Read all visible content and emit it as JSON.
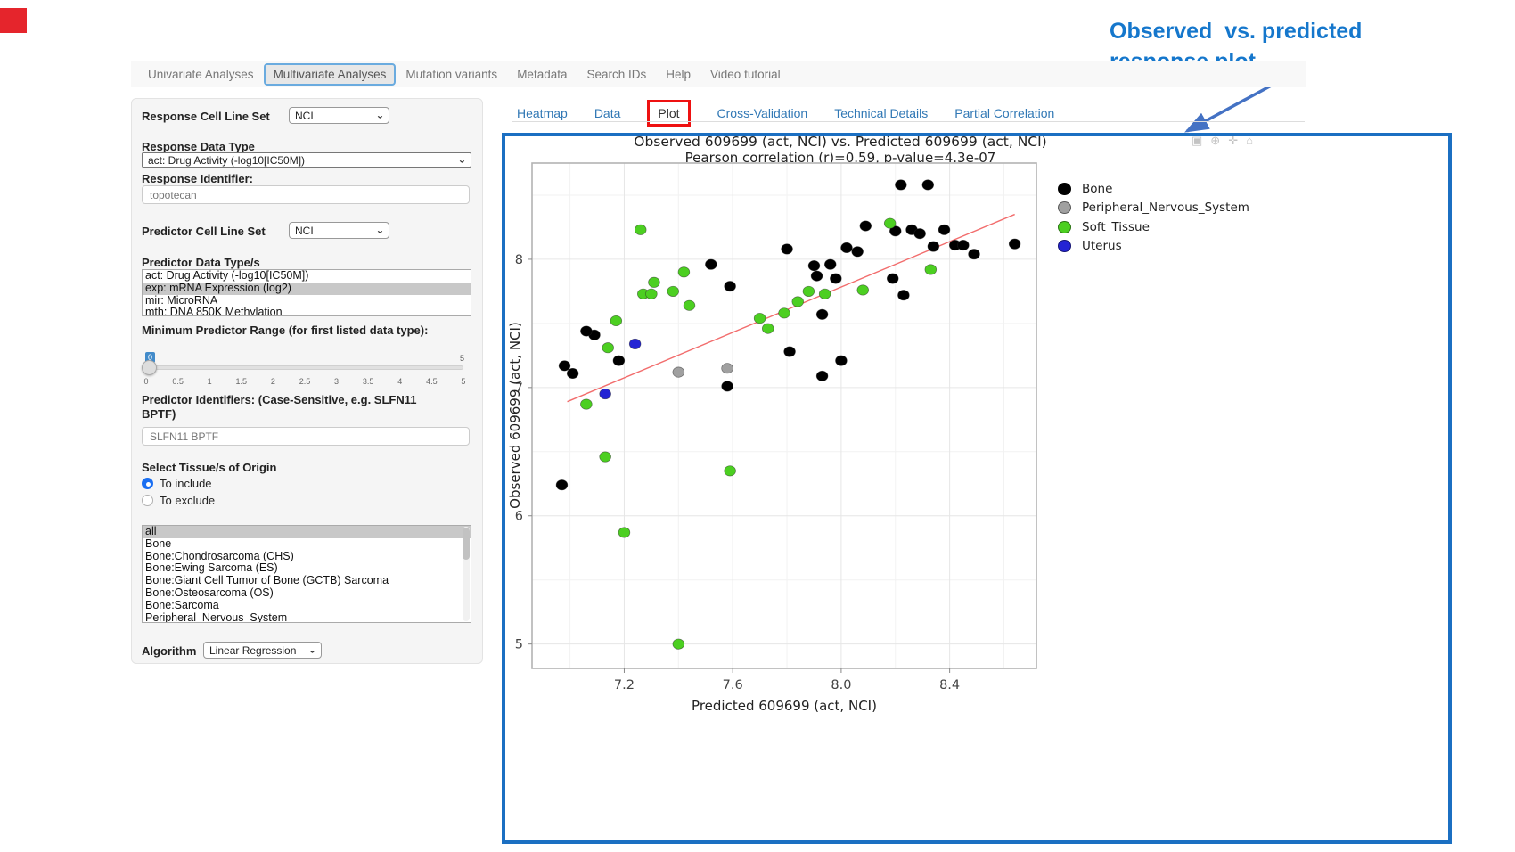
{
  "annotation": {
    "line1": "Observed  vs. predicted",
    "line2": "response plot",
    "text_color": "#1577cc",
    "arrow_color": "#4472c4"
  },
  "navbar": {
    "items": [
      {
        "label": "Univariate Analyses",
        "active": false
      },
      {
        "label": "Multivariate Analyses",
        "active": true
      },
      {
        "label": "Mutation variants",
        "active": false
      },
      {
        "label": "Metadata",
        "active": false
      },
      {
        "label": "Search IDs",
        "active": false
      },
      {
        "label": "Help",
        "active": false
      },
      {
        "label": "Video tutorial",
        "active": false
      }
    ]
  },
  "sidebar": {
    "response_cell_line_set": {
      "label": "Response Cell Line Set",
      "value": "NCI"
    },
    "response_data_type": {
      "label": "Response Data Type",
      "value": "act: Drug Activity (-log10[IC50M])"
    },
    "response_identifier": {
      "label": "Response Identifier:",
      "value": "topotecan"
    },
    "predictor_cell_line_set": {
      "label": "Predictor Cell Line Set",
      "value": "NCI"
    },
    "predictor_data_types": {
      "label": "Predictor Data Type/s",
      "options": [
        "act: Drug Activity (-log10[IC50M])",
        "exp: mRNA Expression (log2)",
        "mir: MicroRNA",
        "mth: DNA 850K Methylation"
      ],
      "selected": "exp: mRNA Expression (log2)"
    },
    "min_predictor_range": {
      "label": "Minimum Predictor Range (for first listed data type):",
      "value": "0",
      "max_label": "5",
      "ticks": [
        "0",
        "0.5",
        "1",
        "1.5",
        "2",
        "2.5",
        "3",
        "3.5",
        "4",
        "4.5",
        "5"
      ]
    },
    "predictor_identifiers": {
      "label": "Predictor Identifiers: (Case-Sensitive, e.g. SLFN11 BPTF)",
      "value": "SLFN11 BPTF"
    },
    "tissue_origin": {
      "label": "Select Tissue/s of Origin",
      "radios": [
        {
          "label": "To include",
          "checked": true
        },
        {
          "label": "To exclude",
          "checked": false
        }
      ],
      "options": [
        "all",
        "Bone",
        "Bone:Chondrosarcoma (CHS)",
        "Bone:Ewing Sarcoma (ES)",
        "Bone:Giant Cell Tumor of Bone (GCTB) Sarcoma",
        "Bone:Osteosarcoma (OS)",
        "Bone:Sarcoma",
        "Peripheral_Nervous_System"
      ],
      "selected": "all"
    },
    "algorithm": {
      "label": "Algorithm",
      "value": "Linear Regression"
    }
  },
  "main": {
    "tabs": [
      {
        "label": "Heatmap",
        "active": false,
        "highlighted": false
      },
      {
        "label": "Data",
        "active": false,
        "highlighted": false
      },
      {
        "label": "Plot",
        "active": true,
        "highlighted": true
      },
      {
        "label": "Cross-Validation",
        "active": false,
        "highlighted": false
      },
      {
        "label": "Technical Details",
        "active": false,
        "highlighted": false
      },
      {
        "label": "Partial Correlation",
        "active": false,
        "highlighted": false
      }
    ],
    "modebar_icons": [
      "camera-icon",
      "zoom-icon",
      "pan-icon",
      "home-icon"
    ]
  },
  "chart_data": {
    "type": "scatter",
    "title": "Observed 609699 (act, NCI) vs. Predicted 609699 (act, NCI)",
    "subtitle": "Pearson correlation (r)=0.59, p-value=4.3e-07",
    "xlabel": "Predicted 609699 (act, NCI)",
    "ylabel": "Observed 609699 (act, NCI)",
    "xlim": [
      6.86,
      8.72
    ],
    "ylim": [
      4.81,
      8.75
    ],
    "x_ticks": [
      7.2,
      7.6,
      8.0,
      8.4
    ],
    "x_tick_labels": [
      "7.2",
      "7.6",
      "8.0",
      "8.4"
    ],
    "y_ticks": [
      5,
      6,
      7,
      8
    ],
    "y_tick_labels": [
      "5",
      "6",
      "7",
      "8"
    ],
    "grid": true,
    "legend_position": "right",
    "series": [
      {
        "name": "Bone",
        "color": "#000000",
        "points": [
          [
            6.97,
            6.24
          ],
          [
            7.01,
            7.11
          ],
          [
            7.09,
            7.41
          ],
          [
            6.98,
            7.17
          ],
          [
            7.18,
            7.21
          ],
          [
            7.06,
            7.44
          ],
          [
            7.52,
            7.96
          ],
          [
            7.59,
            7.79
          ],
          [
            7.58,
            7.01
          ],
          [
            7.8,
            8.08
          ],
          [
            7.9,
            7.95
          ],
          [
            7.96,
            7.96
          ],
          [
            7.91,
            7.87
          ],
          [
            7.98,
            7.85
          ],
          [
            8.02,
            8.09
          ],
          [
            8.06,
            8.06
          ],
          [
            8.09,
            8.26
          ],
          [
            8.22,
            8.58
          ],
          [
            8.32,
            8.58
          ],
          [
            8.2,
            8.22
          ],
          [
            8.26,
            8.23
          ],
          [
            8.29,
            8.2
          ],
          [
            8.38,
            8.23
          ],
          [
            8.34,
            8.1
          ],
          [
            8.42,
            8.11
          ],
          [
            8.45,
            8.11
          ],
          [
            8.49,
            8.04
          ],
          [
            8.64,
            8.12
          ],
          [
            8.19,
            7.85
          ],
          [
            8.23,
            7.72
          ],
          [
            7.93,
            7.57
          ],
          [
            7.81,
            7.28
          ],
          [
            8.0,
            7.21
          ],
          [
            7.93,
            7.09
          ]
        ]
      },
      {
        "name": "Peripheral_Nervous_System",
        "color": "#a0a0a0",
        "points": [
          [
            7.4,
            7.12
          ],
          [
            7.58,
            7.15
          ]
        ]
      },
      {
        "name": "Soft_Tissue",
        "color": "#4ccf21",
        "points": [
          [
            7.26,
            8.23
          ],
          [
            7.42,
            7.9
          ],
          [
            7.31,
            7.82
          ],
          [
            7.27,
            7.73
          ],
          [
            7.3,
            7.73
          ],
          [
            7.38,
            7.75
          ],
          [
            7.44,
            7.64
          ],
          [
            7.17,
            7.52
          ],
          [
            7.14,
            7.31
          ],
          [
            7.7,
            7.54
          ],
          [
            7.73,
            7.46
          ],
          [
            7.79,
            7.58
          ],
          [
            7.84,
            7.67
          ],
          [
            7.88,
            7.75
          ],
          [
            7.94,
            7.73
          ],
          [
            8.08,
            7.76
          ],
          [
            8.18,
            8.28
          ],
          [
            8.33,
            7.92
          ],
          [
            7.06,
            6.87
          ],
          [
            7.13,
            6.46
          ],
          [
            7.59,
            6.35
          ],
          [
            7.2,
            5.87
          ],
          [
            7.4,
            5.0
          ]
        ]
      },
      {
        "name": "Uterus",
        "color": "#2424d4",
        "points": [
          [
            7.24,
            7.34
          ],
          [
            7.13,
            6.95
          ]
        ]
      }
    ],
    "trendline": {
      "color": "#f26d6d",
      "x1": 6.99,
      "y1": 6.89,
      "x2": 8.64,
      "y2": 8.35
    }
  }
}
